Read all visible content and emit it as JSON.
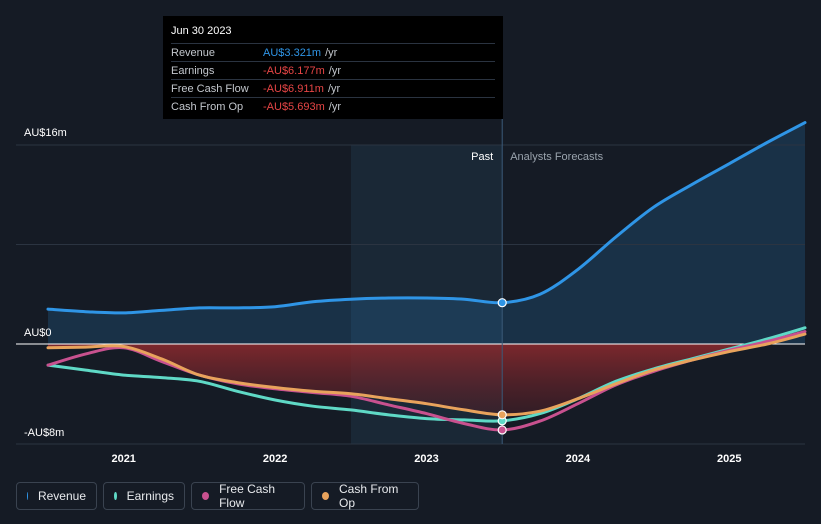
{
  "chart_data": {
    "type": "line",
    "x_ticks": [
      "2021",
      "2022",
      "2023",
      "2024",
      "2025"
    ],
    "x_tick_values": [
      2021,
      2022,
      2023,
      2024,
      2025
    ],
    "xlim": [
      2020.5,
      2025.5
    ],
    "ylim": [
      -8.9,
      16.5
    ],
    "y_labels": [
      {
        "value": 16,
        "text": "AU$16m"
      },
      {
        "value": 0,
        "text": "AU$0"
      },
      {
        "value": -8,
        "text": "-AU$8m"
      }
    ],
    "divider_x": 2023.5,
    "past_label": "Past",
    "forecast_label": "Analysts Forecasts",
    "series": [
      {
        "name": "Revenue",
        "color": "#2f95e6",
        "x": [
          2020.5,
          2020.75,
          2021.0,
          2021.25,
          2021.5,
          2021.75,
          2022.0,
          2022.25,
          2022.5,
          2022.75,
          2023.0,
          2023.25,
          2023.5,
          2023.75,
          2024.0,
          2024.25,
          2024.5,
          2024.75,
          2025.0,
          2025.25,
          2025.5
        ],
        "values": [
          2.8,
          2.6,
          2.5,
          2.7,
          2.9,
          2.9,
          3.0,
          3.4,
          3.6,
          3.7,
          3.7,
          3.6,
          3.321,
          4.0,
          6.0,
          8.6,
          11.0,
          12.8,
          14.5,
          16.2,
          17.8
        ]
      },
      {
        "name": "Earnings",
        "color": "#5fd9c6",
        "x": [
          2020.5,
          2020.75,
          2021.0,
          2021.25,
          2021.5,
          2021.75,
          2022.0,
          2022.25,
          2022.5,
          2022.75,
          2023.0,
          2023.25,
          2023.5,
          2023.75,
          2024.0,
          2024.25,
          2024.5,
          2024.75,
          2025.0,
          2025.25,
          2025.5
        ],
        "values": [
          -1.7,
          -2.1,
          -2.5,
          -2.7,
          -3.0,
          -3.8,
          -4.5,
          -5.0,
          -5.3,
          -5.7,
          -6.0,
          -6.1,
          -6.177,
          -5.6,
          -4.4,
          -3.0,
          -2.0,
          -1.2,
          -0.4,
          0.4,
          1.3
        ]
      },
      {
        "name": "Free Cash Flow",
        "color": "#c8518f",
        "x": [
          2020.5,
          2020.75,
          2021.0,
          2021.25,
          2021.5,
          2021.75,
          2022.0,
          2022.25,
          2022.5,
          2022.75,
          2023.0,
          2023.25,
          2023.5,
          2023.75,
          2024.0,
          2024.25,
          2024.5,
          2024.75,
          2025.0,
          2025.25,
          2025.5
        ],
        "values": [
          -1.7,
          -0.8,
          -0.3,
          -1.4,
          -2.5,
          -3.2,
          -3.6,
          -3.9,
          -4.2,
          -4.9,
          -5.6,
          -6.4,
          -6.911,
          -6.2,
          -4.8,
          -3.3,
          -2.2,
          -1.3,
          -0.5,
          0.2,
          1.0
        ]
      },
      {
        "name": "Cash From Op",
        "color": "#e8a35c",
        "x": [
          2020.5,
          2020.75,
          2021.0,
          2021.25,
          2021.5,
          2021.75,
          2022.0,
          2022.25,
          2022.5,
          2022.75,
          2023.0,
          2023.25,
          2023.5,
          2023.75,
          2024.0,
          2024.25,
          2024.5,
          2024.75,
          2025.0,
          2025.25,
          2025.5
        ],
        "values": [
          -0.3,
          -0.25,
          -0.2,
          -1.2,
          -2.5,
          -3.1,
          -3.5,
          -3.8,
          -4.0,
          -4.4,
          -4.8,
          -5.3,
          -5.693,
          -5.4,
          -4.4,
          -3.2,
          -2.1,
          -1.3,
          -0.6,
          0.0,
          0.8
        ]
      }
    ]
  },
  "tooltip": {
    "date": "Jun 30 2023",
    "rows": [
      {
        "label": "Revenue",
        "value": "AU$3.321m",
        "unit": "/yr",
        "color": "#2f95e6"
      },
      {
        "label": "Earnings",
        "value": "-AU$6.177m",
        "unit": "/yr",
        "color": "#e64545"
      },
      {
        "label": "Free Cash Flow",
        "value": "-AU$6.911m",
        "unit": "/yr",
        "color": "#e64545"
      },
      {
        "label": "Cash From Op",
        "value": "-AU$5.693m",
        "unit": "/yr",
        "color": "#e64545"
      }
    ]
  },
  "legend": [
    {
      "label": "Revenue",
      "color": "#2f95e6"
    },
    {
      "label": "Earnings",
      "color": "#5fd9c6"
    },
    {
      "label": "Free Cash Flow",
      "color": "#c8518f"
    },
    {
      "label": "Cash From Op",
      "color": "#e8a35c"
    }
  ]
}
